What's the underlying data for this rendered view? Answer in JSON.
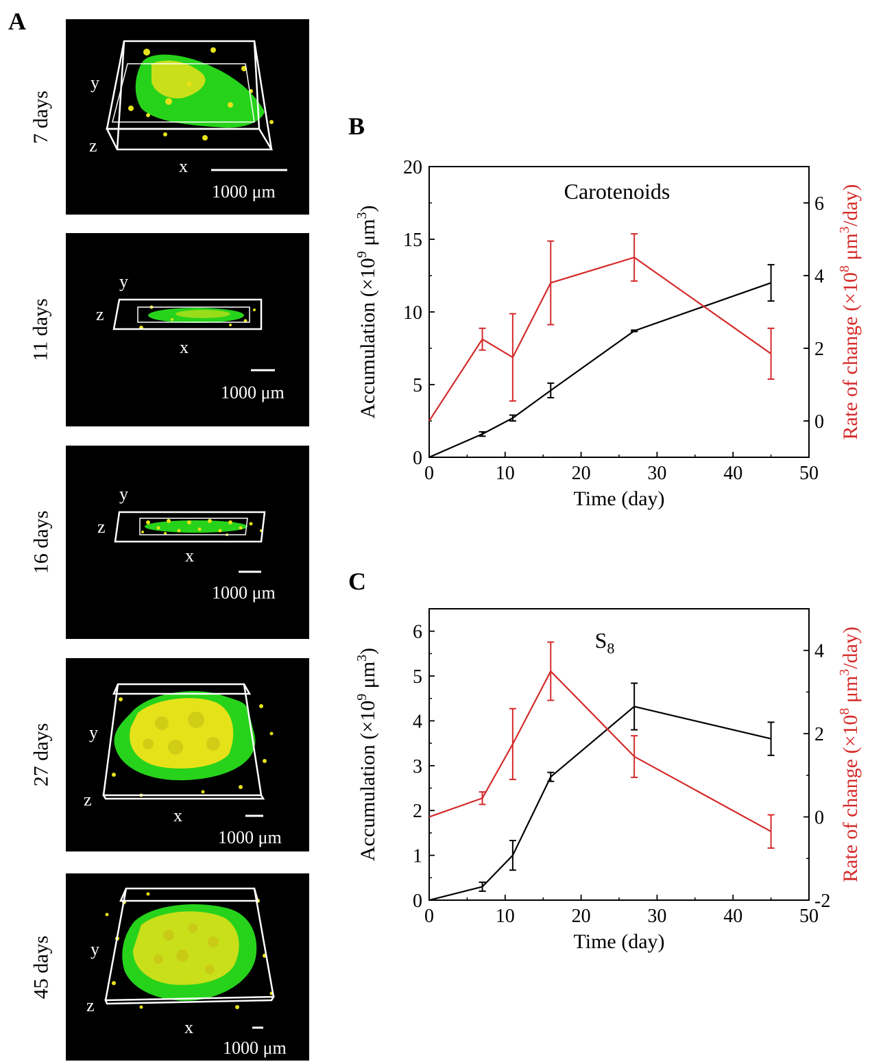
{
  "panel_labels": {
    "a": "A",
    "b": "B",
    "c": "C"
  },
  "image_panels": [
    {
      "day_label": "7 days",
      "axes": {
        "x": "x",
        "y": "y",
        "z": "z"
      },
      "scalebar": "1000 μm"
    },
    {
      "day_label": "11 days",
      "axes": {
        "x": "x",
        "y": "y",
        "z": "z"
      },
      "scalebar": "1000 μm"
    },
    {
      "day_label": "16 days",
      "axes": {
        "x": "x",
        "y": "y",
        "z": "z"
      },
      "scalebar": "1000 μm"
    },
    {
      "day_label": "27 days",
      "axes": {
        "x": "x",
        "y": "y",
        "z": "z"
      },
      "scalebar": "1000 μm"
    },
    {
      "day_label": "45 days",
      "axes": {
        "x": "x",
        "y": "y",
        "z": "z"
      },
      "scalebar": "1000 μm"
    }
  ],
  "colors": {
    "accumulation": "#000000",
    "rate": "#d42a2a",
    "cell_green": "#27d21b",
    "granule_yellow": "#e6e21a"
  },
  "chart_data": [
    {
      "type": "line",
      "title": "Carotenoids",
      "title_sub": "",
      "xlabel": "Time (day)",
      "ylabel_left": "Accumulation (×10",
      "ylabel_left_sup": "9",
      "ylabel_left_mid": " μm",
      "ylabel_left_sup2": "3",
      "ylabel_left_end": ")",
      "ylabel_right": "Rate of change (×10",
      "ylabel_right_sup": "8",
      "ylabel_right_mid": " μm",
      "ylabel_right_sup2": "3",
      "ylabel_right_end": "/day)",
      "xlim": [
        0,
        50
      ],
      "xticks": [
        0,
        10,
        20,
        30,
        40,
        50
      ],
      "ylim_left": [
        0,
        20
      ],
      "yticks_left": [
        0,
        5,
        10,
        15,
        20
      ],
      "ylim_right": [
        -1,
        7
      ],
      "yticks_right": [
        0,
        2,
        4,
        6
      ],
      "series": [
        {
          "name": "Accumulation",
          "axis": "left",
          "color": "#000000",
          "x": [
            0,
            7,
            11,
            16,
            27,
            45
          ],
          "y": [
            0,
            1.6,
            2.7,
            4.6,
            8.7,
            12.0
          ],
          "err": [
            0,
            0.15,
            0.2,
            0.5,
            0.05,
            1.25
          ]
        },
        {
          "name": "Rate of change",
          "axis": "right",
          "color": "#d42a2a",
          "x": [
            0,
            7,
            11,
            16,
            27,
            45
          ],
          "y": [
            0,
            2.25,
            1.75,
            3.8,
            4.5,
            1.85
          ],
          "err": [
            0,
            0.3,
            1.2,
            1.15,
            0.65,
            0.7
          ]
        }
      ]
    },
    {
      "type": "line",
      "title": "S",
      "title_sub": "8",
      "xlabel": "Time (day)",
      "ylabel_left": "Accumulation (×10",
      "ylabel_left_sup": "9",
      "ylabel_left_mid": " μm",
      "ylabel_left_sup2": "3",
      "ylabel_left_end": ")",
      "ylabel_right": "Rate of change (×10",
      "ylabel_right_sup": "8",
      "ylabel_right_mid": " μm",
      "ylabel_right_sup2": "3",
      "ylabel_right_end": "/day)",
      "xlim": [
        0,
        50
      ],
      "xticks": [
        0,
        10,
        20,
        30,
        40,
        50
      ],
      "ylim_left": [
        0,
        6.5
      ],
      "yticks_left": [
        0,
        1,
        2,
        3,
        4,
        5,
        6
      ],
      "ylim_right": [
        -2,
        5
      ],
      "yticks_right": [
        -2,
        0,
        2,
        4
      ],
      "series": [
        {
          "name": "Accumulation",
          "axis": "left",
          "color": "#000000",
          "x": [
            0,
            7,
            11,
            16,
            27,
            45
          ],
          "y": [
            0,
            0.3,
            1.0,
            2.75,
            4.32,
            3.6
          ],
          "err": [
            0,
            0.1,
            0.33,
            0.1,
            0.52,
            0.37
          ]
        },
        {
          "name": "Rate of change",
          "axis": "right",
          "color": "#d42a2a",
          "x": [
            0,
            7,
            11,
            16,
            27,
            45
          ],
          "y": [
            0,
            0.45,
            1.75,
            3.5,
            1.45,
            -0.35
          ],
          "err": [
            0,
            0.15,
            0.85,
            0.7,
            0.5,
            0.4
          ]
        }
      ]
    }
  ]
}
